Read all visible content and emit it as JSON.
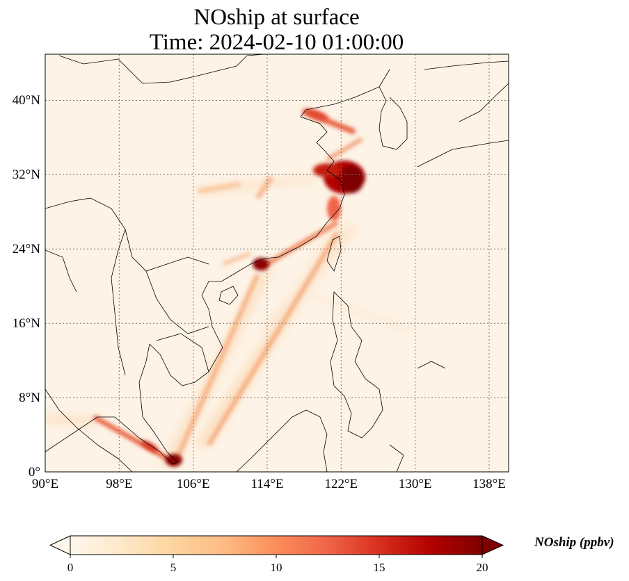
{
  "header": {
    "title_line1": "NOship at surface",
    "title_line2": "Time: 2024-02-10 01:00:00"
  },
  "map": {
    "projection": "PlateCarree",
    "lon_range": [
      90,
      139
    ],
    "lat_range": [
      0,
      45
    ],
    "gridline_style": "dotted",
    "x_ticks": [
      "90°E",
      "98°E",
      "106°E",
      "114°E",
      "122°E",
      "130°E",
      "138°E"
    ],
    "y_ticks": [
      "0°",
      "8°N",
      "16°N",
      "24°N",
      "32°N",
      "40°N"
    ]
  },
  "colorbar": {
    "label": "NOship (ppbv)",
    "ticks": [
      "0",
      "5",
      "10",
      "15",
      "20"
    ],
    "range": [
      0,
      20
    ],
    "extend": "both",
    "colormap": [
      "#fff7ec",
      "#fee8c8",
      "#fdd49e",
      "#fdbb84",
      "#fc8d59",
      "#ef6548",
      "#d7301f",
      "#b30000",
      "#7f0000"
    ]
  }
}
